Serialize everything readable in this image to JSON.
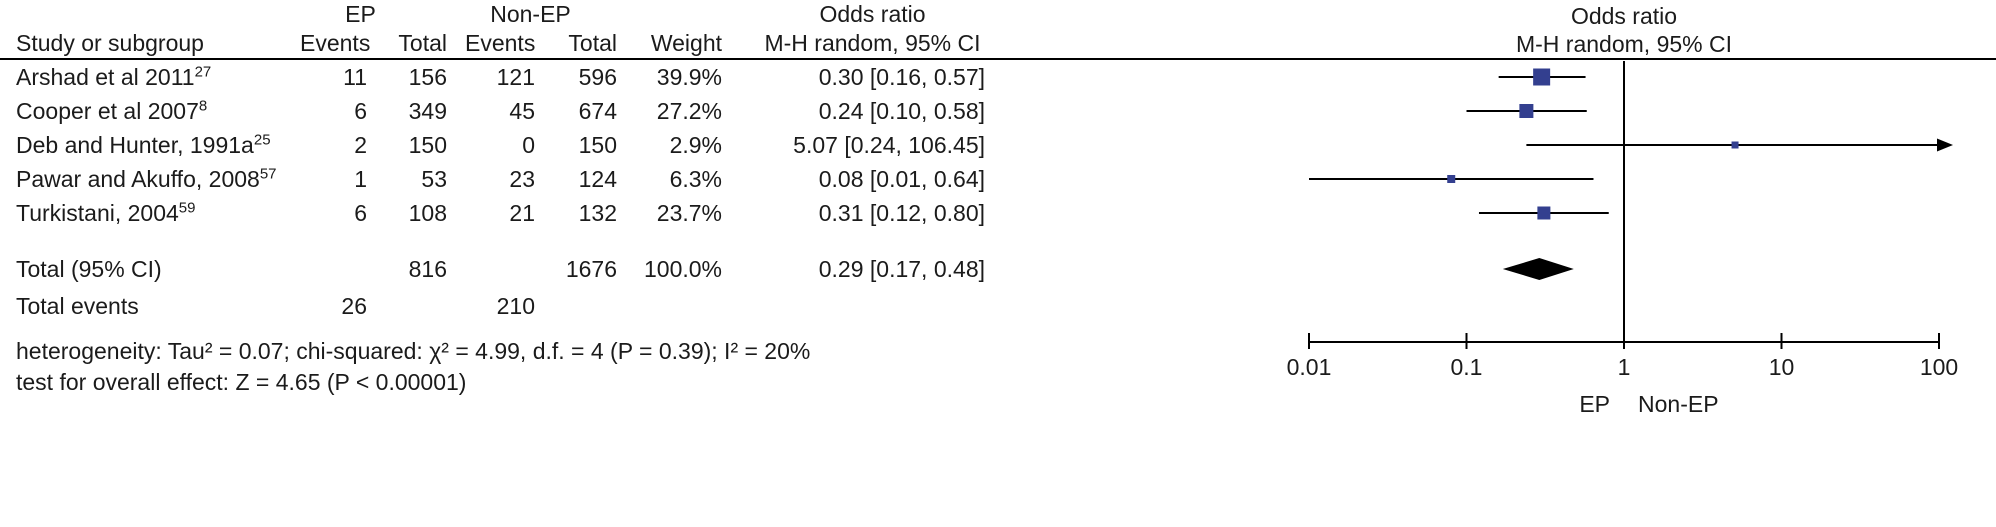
{
  "colors": {
    "marker": "#333f8f",
    "diamond": "#000000",
    "axis": "#000000",
    "text": "#1b1b1b",
    "background": "#ffffff"
  },
  "table": {
    "group_headers": {
      "ep": "EP",
      "non_ep": "Non-EP",
      "odds_ratio": "Odds ratio"
    },
    "col_headers": {
      "study": "Study or subgroup",
      "ep_events": "Events",
      "ep_total": "Total",
      "nep_events": "Events",
      "nep_total": "Total",
      "weight": "Weight",
      "or_ci": "M-H random, 95% CI"
    },
    "rows": [
      {
        "study": "Arshad et al 2011",
        "ref": "27",
        "ep_events": "11",
        "ep_total": "156",
        "nep_events": "121",
        "nep_total": "596",
        "weight": "39.9%",
        "or_ci": "0.30 [0.16, 0.57]"
      },
      {
        "study": "Cooper et al 2007",
        "ref": "8",
        "ep_events": "6",
        "ep_total": "349",
        "nep_events": "45",
        "nep_total": "674",
        "weight": "27.2%",
        "or_ci": "0.24 [0.10, 0.58]"
      },
      {
        "study": "Deb and Hunter, 1991a",
        "ref": "25",
        "ep_events": "2",
        "ep_total": "150",
        "nep_events": "0",
        "nep_total": "150",
        "weight": "2.9%",
        "or_ci": "5.07 [0.24, 106.45]"
      },
      {
        "study": "Pawar and Akuffo, 2008",
        "ref": "57",
        "ep_events": "1",
        "ep_total": "53",
        "nep_events": "23",
        "nep_total": "124",
        "weight": "6.3%",
        "or_ci": "0.08 [0.01, 0.64]"
      },
      {
        "study": "Turkistani, 2004",
        "ref": "59",
        "ep_events": "6",
        "ep_total": "108",
        "nep_events": "21",
        "nep_total": "132",
        "weight": "23.7%",
        "or_ci": "0.31 [0.12, 0.80]"
      }
    ],
    "total_row": {
      "label": "Total (95% CI)",
      "ep_total": "816",
      "nep_total": "1676",
      "weight": "100.0%",
      "or_ci": "0.29 [0.17, 0.48]"
    },
    "total_events_row": {
      "label": "Total events",
      "ep_events": "26",
      "nep_events": "210"
    },
    "footnotes": [
      "heterogeneity: Tau² = 0.07; chi-squared: χ² = 4.99, d.f. = 4 (P = 0.39); I² = 20%",
      "test for overall effect: Z = 4.65 (P < 0.00001)"
    ]
  },
  "plot": {
    "header_line1": "Odds ratio",
    "header_line2": "M-H random, 95% CI",
    "axis_tick_labels": [
      "0.01",
      "0.1",
      "1",
      "10",
      "100"
    ],
    "left_group_label": "EP",
    "right_group_label": "Non-EP"
  },
  "chart_data": {
    "type": "forest",
    "x_scale": "log10",
    "x_range": [
      0.01,
      100
    ],
    "x_ticks": [
      0.01,
      0.1,
      1,
      10,
      100
    ],
    "null_line": 1,
    "effect_label": "Odds ratio",
    "method_label": "M-H random, 95% CI",
    "studies": [
      {
        "label": "Arshad et al 2011",
        "ref": "27",
        "ep_events": 11,
        "ep_total": 156,
        "nonep_events": 121,
        "nonep_total": 596,
        "weight_pct": 39.9,
        "or": 0.3,
        "ci_low": 0.16,
        "ci_high": 0.57
      },
      {
        "label": "Cooper et al 2007",
        "ref": "8",
        "ep_events": 6,
        "ep_total": 349,
        "nonep_events": 45,
        "nonep_total": 674,
        "weight_pct": 27.2,
        "or": 0.24,
        "ci_low": 0.1,
        "ci_high": 0.58
      },
      {
        "label": "Deb and Hunter, 1991a",
        "ref": "25",
        "ep_events": 2,
        "ep_total": 150,
        "nonep_events": 0,
        "nonep_total": 150,
        "weight_pct": 2.9,
        "or": 5.07,
        "ci_low": 0.24,
        "ci_high": 106.45
      },
      {
        "label": "Pawar and Akuffo, 2008",
        "ref": "57",
        "ep_events": 1,
        "ep_total": 53,
        "nonep_events": 23,
        "nonep_total": 124,
        "weight_pct": 6.3,
        "or": 0.08,
        "ci_low": 0.01,
        "ci_high": 0.64
      },
      {
        "label": "Turkistani, 2004",
        "ref": "59",
        "ep_events": 6,
        "ep_total": 108,
        "nonep_events": 21,
        "nonep_total": 132,
        "weight_pct": 23.7,
        "or": 0.31,
        "ci_low": 0.12,
        "ci_high": 0.8
      }
    ],
    "total": {
      "label": "Total (95% CI)",
      "ep_total": 816,
      "nonep_total": 1676,
      "weight_pct": 100.0,
      "or": 0.29,
      "ci_low": 0.17,
      "ci_high": 0.48
    },
    "total_events": {
      "ep": 26,
      "nonep": 210
    },
    "heterogeneity": {
      "tau2": 0.07,
      "chi2": 4.99,
      "df": 4,
      "P": 0.39,
      "I2_pct": 20
    },
    "overall_effect": {
      "Z": 4.65,
      "P": "< 0.00001"
    },
    "favours_left_label": "EP",
    "favours_right_label": "Non-EP",
    "marker_color": "#333f8f"
  }
}
